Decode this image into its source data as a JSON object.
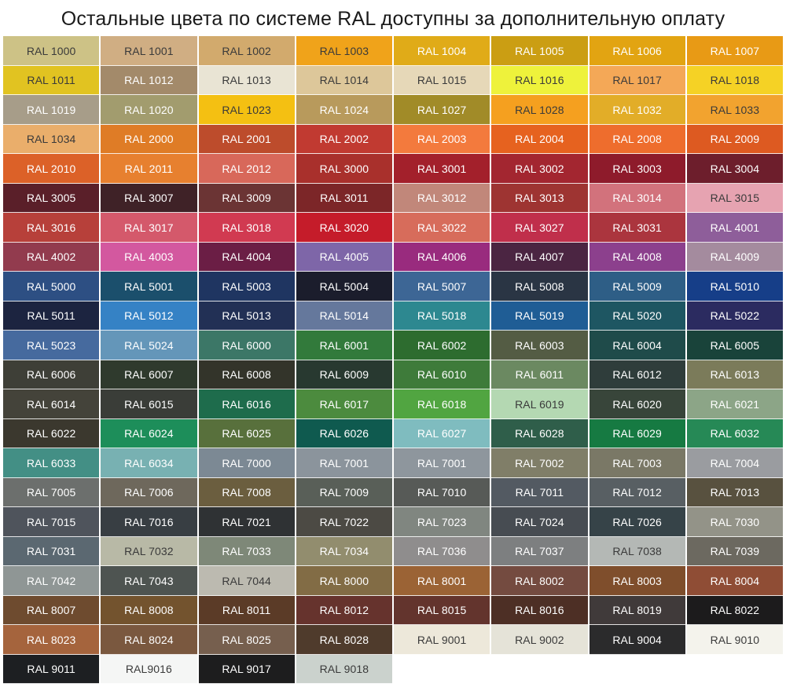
{
  "title": "Остальные цвета по системе RAL доступны за дополнительную оплату",
  "swatches": [
    {
      "label": "RAL 1000",
      "color": "#cdc286",
      "text": "#3a3a3a"
    },
    {
      "label": "RAL 1001",
      "color": "#d0ae83",
      "text": "#3a3a3a"
    },
    {
      "label": "RAL 1002",
      "color": "#d2aa6d",
      "text": "#3a3a3a"
    },
    {
      "label": "RAL 1003",
      "color": "#f0a31a",
      "text": "#3a3a3a"
    },
    {
      "label": "RAL 1004",
      "color": "#e0ab18",
      "text": "#ffffff"
    },
    {
      "label": "RAL 1005",
      "color": "#cb9e13",
      "text": "#ffffff"
    },
    {
      "label": "RAL 1006",
      "color": "#e2a412",
      "text": "#ffffff"
    },
    {
      "label": "RAL 1007",
      "color": "#e89a15",
      "text": "#ffffff"
    },
    {
      "label": "RAL 1011",
      "color": "#e1c321",
      "text": "#3a3a3a"
    },
    {
      "label": "RAL 1012",
      "color": "#a38a6a",
      "text": "#ffffff"
    },
    {
      "label": "RAL 1013",
      "color": "#e9e4d4",
      "text": "#3a3a3a"
    },
    {
      "label": "RAL 1014",
      "color": "#ddc79a",
      "text": "#3a3a3a"
    },
    {
      "label": "RAL 1015",
      "color": "#e6d8b8",
      "text": "#3a3a3a"
    },
    {
      "label": "RAL 1016",
      "color": "#eef23b",
      "text": "#3a3a3a"
    },
    {
      "label": "RAL 1017",
      "color": "#f4a857",
      "text": "#3a3a3a"
    },
    {
      "label": "RAL 1018",
      "color": "#f5d225",
      "text": "#3a3a3a"
    },
    {
      "label": "RAL 1019",
      "color": "#a79d89",
      "text": "#ffffff"
    },
    {
      "label": "RAL 1020",
      "color": "#a29c6e",
      "text": "#ffffff"
    },
    {
      "label": "RAL 1023",
      "color": "#f4c012",
      "text": "#3a3a3a"
    },
    {
      "label": "RAL 1024",
      "color": "#b89a5c",
      "text": "#ffffff"
    },
    {
      "label": "RAL 1027",
      "color": "#a18b28",
      "text": "#ffffff"
    },
    {
      "label": "RAL 1028",
      "color": "#f5a01f",
      "text": "#3a3a3a"
    },
    {
      "label": "RAL 1032",
      "color": "#e2ad28",
      "text": "#ffffff"
    },
    {
      "label": "RAL 1033",
      "color": "#f2a32f",
      "text": "#3a3a3a"
    },
    {
      "label": "RAL 1034",
      "color": "#eaae6b",
      "text": "#3a3a3a"
    },
    {
      "label": "RAL 2000",
      "color": "#df7c26",
      "text": "#ffffff"
    },
    {
      "label": "RAL 2001",
      "color": "#bd4c2c",
      "text": "#ffffff"
    },
    {
      "label": "RAL 2002",
      "color": "#c13a31",
      "text": "#ffffff"
    },
    {
      "label": "RAL 2003",
      "color": "#f37a3d",
      "text": "#ffffff"
    },
    {
      "label": "RAL 2004",
      "color": "#e6621f",
      "text": "#ffffff"
    },
    {
      "label": "RAL 2008",
      "color": "#ee6d2d",
      "text": "#ffffff"
    },
    {
      "label": "RAL 2009",
      "color": "#dd5a21",
      "text": "#ffffff"
    },
    {
      "label": "RAL 2010",
      "color": "#dc6128",
      "text": "#ffffff"
    },
    {
      "label": "RAL 2011",
      "color": "#e7802f",
      "text": "#ffffff"
    },
    {
      "label": "RAL 2012",
      "color": "#d8685a",
      "text": "#ffffff"
    },
    {
      "label": "RAL 3000",
      "color": "#a9302c",
      "text": "#ffffff"
    },
    {
      "label": "RAL 3001",
      "color": "#a3202b",
      "text": "#ffffff"
    },
    {
      "label": "RAL 3002",
      "color": "#a32630",
      "text": "#ffffff"
    },
    {
      "label": "RAL 3003",
      "color": "#8e1b2b",
      "text": "#ffffff"
    },
    {
      "label": "RAL 3004",
      "color": "#6d1e2c",
      "text": "#ffffff"
    },
    {
      "label": "RAL 3005",
      "color": "#5a1f29",
      "text": "#ffffff"
    },
    {
      "label": "RAL 3007",
      "color": "#3f2227",
      "text": "#ffffff"
    },
    {
      "label": "RAL 3009",
      "color": "#6b3434",
      "text": "#ffffff"
    },
    {
      "label": "RAL 3011",
      "color": "#7c2628",
      "text": "#ffffff"
    },
    {
      "label": "RAL 3012",
      "color": "#c1877a",
      "text": "#ffffff"
    },
    {
      "label": "RAL 3013",
      "color": "#9e3432",
      "text": "#ffffff"
    },
    {
      "label": "RAL 3014",
      "color": "#d2727c",
      "text": "#ffffff"
    },
    {
      "label": "RAL 3015",
      "color": "#e6a3b1",
      "text": "#3a3a3a"
    },
    {
      "label": "RAL 3016",
      "color": "#b7403a",
      "text": "#ffffff"
    },
    {
      "label": "RAL 3017",
      "color": "#d4596b",
      "text": "#ffffff"
    },
    {
      "label": "RAL 3018",
      "color": "#d13a51",
      "text": "#ffffff"
    },
    {
      "label": "RAL 3020",
      "color": "#c51c2a",
      "text": "#ffffff"
    },
    {
      "label": "RAL 3022",
      "color": "#d76c5b",
      "text": "#ffffff"
    },
    {
      "label": "RAL 3027",
      "color": "#c02f4b",
      "text": "#ffffff"
    },
    {
      "label": "RAL 3031",
      "color": "#ab353e",
      "text": "#ffffff"
    },
    {
      "label": "RAL 4001",
      "color": "#8e5e9a",
      "text": "#ffffff"
    },
    {
      "label": "RAL 4002",
      "color": "#923b4e",
      "text": "#ffffff"
    },
    {
      "label": "RAL 4003",
      "color": "#d3589f",
      "text": "#ffffff"
    },
    {
      "label": "RAL 4004",
      "color": "#6b1e45",
      "text": "#ffffff"
    },
    {
      "label": "RAL 4005",
      "color": "#7e66a8",
      "text": "#ffffff"
    },
    {
      "label": "RAL 4006",
      "color": "#992b7e",
      "text": "#ffffff"
    },
    {
      "label": "RAL 4007",
      "color": "#4b2542",
      "text": "#ffffff"
    },
    {
      "label": "RAL 4008",
      "color": "#8c408d",
      "text": "#ffffff"
    },
    {
      "label": "RAL 4009",
      "color": "#a48b9e",
      "text": "#ffffff"
    },
    {
      "label": "RAL 5000",
      "color": "#2d4f83",
      "text": "#ffffff"
    },
    {
      "label": "RAL 5001",
      "color": "#1b4f6c",
      "text": "#ffffff"
    },
    {
      "label": "RAL 5003",
      "color": "#1f3561",
      "text": "#ffffff"
    },
    {
      "label": "RAL 5004",
      "color": "#1b1d2c",
      "text": "#ffffff"
    },
    {
      "label": "RAL 5007",
      "color": "#3d6695",
      "text": "#ffffff"
    },
    {
      "label": "RAL 5008",
      "color": "#2a3544",
      "text": "#ffffff"
    },
    {
      "label": "RAL 5009",
      "color": "#2e5e86",
      "text": "#ffffff"
    },
    {
      "label": "RAL 5010",
      "color": "#163e88",
      "text": "#ffffff"
    },
    {
      "label": "RAL 5011",
      "color": "#1c2440",
      "text": "#ffffff"
    },
    {
      "label": "RAL 5012",
      "color": "#3582c5",
      "text": "#ffffff"
    },
    {
      "label": "RAL 5013",
      "color": "#223055",
      "text": "#ffffff"
    },
    {
      "label": "RAL 5014",
      "color": "#65789c",
      "text": "#ffffff"
    },
    {
      "label": "RAL 5018",
      "color": "#2d8890",
      "text": "#ffffff"
    },
    {
      "label": "RAL 5019",
      "color": "#1f5d95",
      "text": "#ffffff"
    },
    {
      "label": "RAL 5020",
      "color": "#1e5662",
      "text": "#ffffff"
    },
    {
      "label": "RAL 5022",
      "color": "#2b2b60",
      "text": "#ffffff"
    },
    {
      "label": "RAL 5023",
      "color": "#466a9e",
      "text": "#ffffff"
    },
    {
      "label": "RAL 5024",
      "color": "#6496b9",
      "text": "#ffffff"
    },
    {
      "label": "RAL 6000",
      "color": "#3c7767",
      "text": "#ffffff"
    },
    {
      "label": "RAL 6001",
      "color": "#327a3b",
      "text": "#ffffff"
    },
    {
      "label": "RAL 6002",
      "color": "#2d6c2f",
      "text": "#ffffff"
    },
    {
      "label": "RAL 6003",
      "color": "#545c44",
      "text": "#ffffff"
    },
    {
      "label": "RAL 6004",
      "color": "#1f4b4a",
      "text": "#ffffff"
    },
    {
      "label": "RAL 6005",
      "color": "#19433a",
      "text": "#ffffff"
    },
    {
      "label": "RAL 6006",
      "color": "#3e3f37",
      "text": "#ffffff"
    },
    {
      "label": "RAL 6007",
      "color": "#2f3a2d",
      "text": "#ffffff"
    },
    {
      "label": "RAL 6008",
      "color": "#33342a",
      "text": "#ffffff"
    },
    {
      "label": "RAL 6009",
      "color": "#283930",
      "text": "#ffffff"
    },
    {
      "label": "RAL 6010",
      "color": "#3e7b3a",
      "text": "#ffffff"
    },
    {
      "label": "RAL 6011",
      "color": "#6b8961",
      "text": "#ffffff"
    },
    {
      "label": "RAL 6012",
      "color": "#2f3d3b",
      "text": "#ffffff"
    },
    {
      "label": "RAL 6013",
      "color": "#7b7b5a",
      "text": "#ffffff"
    },
    {
      "label": "RAL 6014",
      "color": "#44433a",
      "text": "#ffffff"
    },
    {
      "label": "RAL 6015",
      "color": "#3a3d38",
      "text": "#ffffff"
    },
    {
      "label": "RAL 6016",
      "color": "#1e6c4c",
      "text": "#ffffff"
    },
    {
      "label": "RAL 6017",
      "color": "#4c8b3e",
      "text": "#ffffff"
    },
    {
      "label": "RAL 6018",
      "color": "#51a541",
      "text": "#ffffff"
    },
    {
      "label": "RAL 6019",
      "color": "#b4d8b2",
      "text": "#3a3a3a"
    },
    {
      "label": "RAL 6020",
      "color": "#38453a",
      "text": "#ffffff"
    },
    {
      "label": "RAL 6021",
      "color": "#8ca587",
      "text": "#ffffff"
    },
    {
      "label": "RAL 6022",
      "color": "#3b382e",
      "text": "#ffffff"
    },
    {
      "label": "RAL 6024",
      "color": "#1d8e5a",
      "text": "#ffffff"
    },
    {
      "label": "RAL 6025",
      "color": "#58703c",
      "text": "#ffffff"
    },
    {
      "label": "RAL 6026",
      "color": "#0f5a4f",
      "text": "#ffffff"
    },
    {
      "label": "RAL 6027",
      "color": "#7fbcbf",
      "text": "#ffffff"
    },
    {
      "label": "RAL 6028",
      "color": "#2f5e4a",
      "text": "#ffffff"
    },
    {
      "label": "RAL 6029",
      "color": "#167a42",
      "text": "#ffffff"
    },
    {
      "label": "RAL 6032",
      "color": "#268956",
      "text": "#ffffff"
    },
    {
      "label": "RAL 6033",
      "color": "#438f85",
      "text": "#ffffff"
    },
    {
      "label": "RAL 6034",
      "color": "#78b1b2",
      "text": "#ffffff"
    },
    {
      "label": "RAL 7000",
      "color": "#7c8994",
      "text": "#ffffff"
    },
    {
      "label": "RAL 7001",
      "color": "#8b949c",
      "text": "#ffffff"
    },
    {
      "label": "RAL 7001",
      "color": "#8e969d",
      "text": "#ffffff"
    },
    {
      "label": "RAL 7002",
      "color": "#807e68",
      "text": "#ffffff"
    },
    {
      "label": "RAL 7003",
      "color": "#7a7866",
      "text": "#ffffff"
    },
    {
      "label": "RAL 7004",
      "color": "#9a9ca0",
      "text": "#ffffff"
    },
    {
      "label": "RAL 7005",
      "color": "#6c6f6d",
      "text": "#ffffff"
    },
    {
      "label": "RAL 7006",
      "color": "#6e685c",
      "text": "#ffffff"
    },
    {
      "label": "RAL 7008",
      "color": "#6b5e3f",
      "text": "#ffffff"
    },
    {
      "label": "RAL 7009",
      "color": "#595f58",
      "text": "#ffffff"
    },
    {
      "label": "RAL 7010",
      "color": "#575a57",
      "text": "#ffffff"
    },
    {
      "label": "RAL 7011",
      "color": "#535a62",
      "text": "#ffffff"
    },
    {
      "label": "RAL 7012",
      "color": "#585f63",
      "text": "#ffffff"
    },
    {
      "label": "RAL 7013",
      "color": "#58513f",
      "text": "#ffffff"
    },
    {
      "label": "RAL 7015",
      "color": "#4f545c",
      "text": "#ffffff"
    },
    {
      "label": "RAL 7016",
      "color": "#383e43",
      "text": "#ffffff"
    },
    {
      "label": "RAL 7021",
      "color": "#2f3234",
      "text": "#ffffff"
    },
    {
      "label": "RAL 7022",
      "color": "#4c4a44",
      "text": "#ffffff"
    },
    {
      "label": "RAL 7023",
      "color": "#808680",
      "text": "#ffffff"
    },
    {
      "label": "RAL 7024",
      "color": "#474c52",
      "text": "#ffffff"
    },
    {
      "label": "RAL 7026",
      "color": "#364348",
      "text": "#ffffff"
    },
    {
      "label": "RAL 7030",
      "color": "#939388",
      "text": "#ffffff"
    },
    {
      "label": "RAL 7031",
      "color": "#5b6871",
      "text": "#ffffff"
    },
    {
      "label": "RAL 7032",
      "color": "#b8b9a6",
      "text": "#3a3a3a"
    },
    {
      "label": "RAL 7033",
      "color": "#7e8878",
      "text": "#ffffff"
    },
    {
      "label": "RAL 7034",
      "color": "#928d6e",
      "text": "#ffffff"
    },
    {
      "label": "RAL 7036",
      "color": "#8f8d8d",
      "text": "#ffffff"
    },
    {
      "label": "RAL 7037",
      "color": "#7d7f80",
      "text": "#ffffff"
    },
    {
      "label": "RAL 7038",
      "color": "#b4b8b5",
      "text": "#3a3a3a"
    },
    {
      "label": "RAL 7039",
      "color": "#6c6960",
      "text": "#ffffff"
    },
    {
      "label": "RAL 7042",
      "color": "#8f9695",
      "text": "#ffffff"
    },
    {
      "label": "RAL 7043",
      "color": "#4e5451",
      "text": "#ffffff"
    },
    {
      "label": "RAL 7044",
      "color": "#bcbab0",
      "text": "#3a3a3a"
    },
    {
      "label": "RAL 8000",
      "color": "#826c45",
      "text": "#ffffff"
    },
    {
      "label": "RAL 8001",
      "color": "#9b6335",
      "text": "#ffffff"
    },
    {
      "label": "RAL 8002",
      "color": "#744b40",
      "text": "#ffffff"
    },
    {
      "label": "RAL 8003",
      "color": "#7f4e2c",
      "text": "#ffffff"
    },
    {
      "label": "RAL 8004",
      "color": "#8f4d35",
      "text": "#ffffff"
    },
    {
      "label": "RAL 8007",
      "color": "#6e4b2f",
      "text": "#ffffff"
    },
    {
      "label": "RAL 8008",
      "color": "#73532e",
      "text": "#ffffff"
    },
    {
      "label": "RAL 8011",
      "color": "#5b3b27",
      "text": "#ffffff"
    },
    {
      "label": "RAL 8012",
      "color": "#66332d",
      "text": "#ffffff"
    },
    {
      "label": "RAL 8015",
      "color": "#63342d",
      "text": "#ffffff"
    },
    {
      "label": "RAL 8016",
      "color": "#4d2f25",
      "text": "#ffffff"
    },
    {
      "label": "RAL 8019",
      "color": "#403a3a",
      "text": "#ffffff"
    },
    {
      "label": "RAL 8022",
      "color": "#1c1b1c",
      "text": "#ffffff"
    },
    {
      "label": "RAL 8023",
      "color": "#a5643d",
      "text": "#ffffff"
    },
    {
      "label": "RAL 8024",
      "color": "#7a583f",
      "text": "#ffffff"
    },
    {
      "label": "RAL 8025",
      "color": "#765f4e",
      "text": "#ffffff"
    },
    {
      "label": "RAL 8028",
      "color": "#4f3b2c",
      "text": "#ffffff"
    },
    {
      "label": "RAL 9001",
      "color": "#ede8da",
      "text": "#3a3a3a"
    },
    {
      "label": "RAL 9002",
      "color": "#e5e3d8",
      "text": "#3a3a3a"
    },
    {
      "label": "RAL 9004",
      "color": "#2b2b2c",
      "text": "#ffffff"
    },
    {
      "label": "RAL 9010",
      "color": "#f4f3ec",
      "text": "#3a3a3a"
    },
    {
      "label": "RAL 9011",
      "color": "#1d1f22",
      "text": "#ffffff"
    },
    {
      "label": "RAL9016",
      "color": "#f5f6f5",
      "text": "#3a3a3a"
    },
    {
      "label": "RAL 9017",
      "color": "#1d1d1e",
      "text": "#ffffff"
    },
    {
      "label": "RAL 9018",
      "color": "#cbd2cd",
      "text": "#3a3a3a"
    }
  ]
}
